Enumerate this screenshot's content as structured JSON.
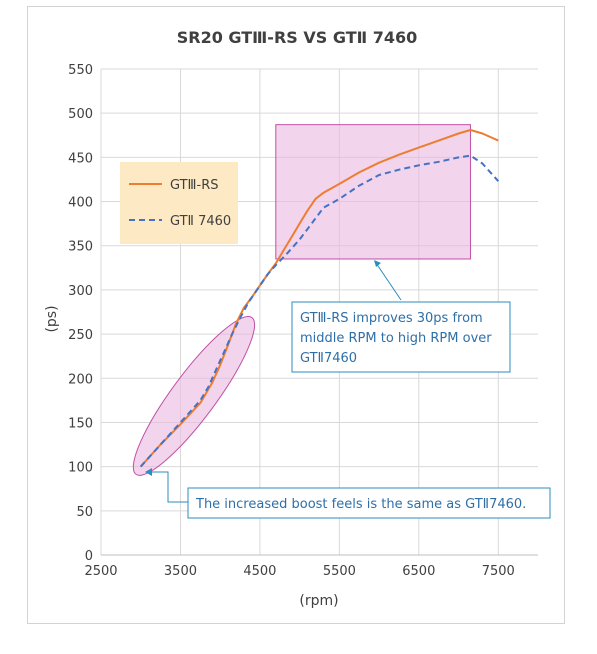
{
  "chart_data": {
    "type": "line",
    "title": "SR20 GTⅢ-RS VS GTⅡ 7460",
    "xlabel": "(rpm)",
    "ylabel": "(ps)",
    "xlim": [
      2500,
      8000
    ],
    "ylim": [
      0,
      550
    ],
    "x_ticks": [
      "2500",
      "3500",
      "4500",
      "5500",
      "6500",
      "7500"
    ],
    "y_ticks": [
      "0",
      "50",
      "100",
      "150",
      "200",
      "250",
      "300",
      "350",
      "400",
      "450",
      "500",
      "550"
    ],
    "grid": true,
    "legend_position": "left",
    "series": [
      {
        "name": "GTⅢ-RS",
        "color": "#ed7d31",
        "style": "solid",
        "x": [
          3000,
          3250,
          3500,
          3750,
          3900,
          4000,
          4100,
          4200,
          4300,
          4400,
          4500,
          4600,
          4700,
          4800,
          4900,
          5000,
          5100,
          5200,
          5300,
          5500,
          5750,
          6000,
          6250,
          6500,
          6750,
          7000,
          7150,
          7300,
          7500
        ],
        "y": [
          100,
          125,
          148,
          172,
          195,
          215,
          238,
          262,
          280,
          292,
          305,
          318,
          330,
          345,
          360,
          375,
          390,
          403,
          410,
          420,
          433,
          444,
          453,
          461,
          469,
          477,
          481,
          477,
          469
        ]
      },
      {
        "name": "GTⅡ 7460",
        "color": "#4472c4",
        "style": "dashed",
        "x": [
          3000,
          3250,
          3500,
          3750,
          3850,
          3950,
          4050,
          4150,
          4250,
          4350,
          4500,
          4600,
          4700,
          4850,
          5000,
          5150,
          5300,
          5500,
          5750,
          6000,
          6250,
          6500,
          6750,
          7000,
          7150,
          7300,
          7500
        ],
        "y": [
          100,
          125,
          150,
          175,
          190,
          210,
          230,
          250,
          268,
          285,
          305,
          318,
          328,
          342,
          357,
          375,
          393,
          403,
          418,
          430,
          436,
          441,
          445,
          450,
          452,
          443,
          423
        ]
      }
    ],
    "highlight_rect": {
      "x": [
        4700,
        7150
      ],
      "y": [
        335,
        487
      ],
      "fill": "#e9b7df",
      "stroke": "#c050a8"
    },
    "highlight_ellipse": {
      "x": [
        2970,
        4370
      ],
      "y": [
        95,
        265
      ],
      "fill": "#e9b7df",
      "stroke": "#c050a8"
    },
    "annotations": [
      {
        "lines": [
          "GTⅢ-RS improves 30ps from",
          "middle RPM to high RPM over",
          "GTⅡ7460"
        ],
        "color": "#2e6fa8",
        "points_to": [
          5960,
          335
        ]
      },
      {
        "lines": [
          "The increased boost feels is the same as GTⅡ7460."
        ],
        "color": "#2e6fa8",
        "points_to": [
          3000,
          97
        ]
      }
    ]
  }
}
